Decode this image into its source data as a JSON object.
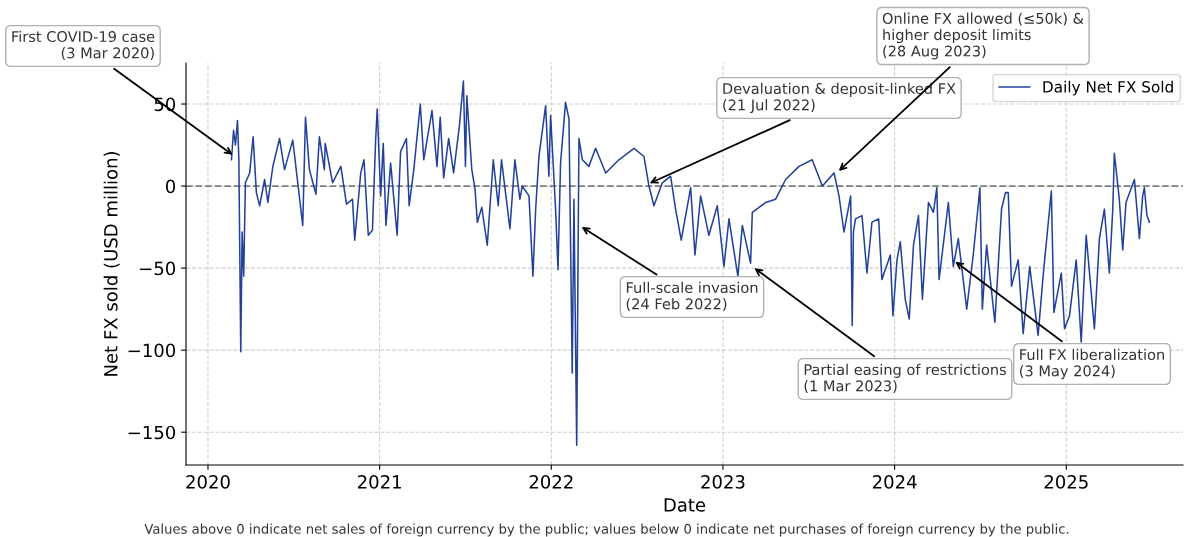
{
  "chart_data": {
    "type": "line",
    "xlabel": "Date",
    "ylabel": "Net FX sold (USD million)",
    "xlim": [
      2019.872,
      2025.68
    ],
    "xticks": [
      2020,
      2021,
      2022,
      2023,
      2024,
      2025
    ],
    "ylim": [
      -170,
      75
    ],
    "yticks": [
      {
        "value": -150,
        "label": "−150"
      },
      {
        "value": -100,
        "label": "−100"
      },
      {
        "value": -50,
        "label": "−50"
      },
      0,
      50
    ],
    "grid": true,
    "legend": "top right",
    "line_style": "solid",
    "marker": "none",
    "ref_lines": [
      {
        "axis": "y",
        "value": 0,
        "color": "#808080",
        "line_style": "dashed"
      }
    ],
    "series": [
      {
        "name": "Daily Net FX Sold",
        "color": "#23409a",
        "x": [
          2020.137,
          2020.149,
          2020.16,
          2020.172,
          2020.18,
          2020.191,
          2020.199,
          2020.208,
          2020.218,
          2020.243,
          2020.263,
          2020.282,
          2020.301,
          2020.33,
          2020.349,
          2020.378,
          2020.417,
          2020.446,
          2020.494,
          2020.523,
          2020.552,
          2020.568,
          2020.591,
          2020.629,
          2020.649,
          2020.678,
          2020.683,
          2020.726,
          2020.774,
          2020.807,
          2020.842,
          2020.855,
          2020.89,
          2020.909,
          2020.934,
          2020.958,
          2020.977,
          2020.986,
          2021.006,
          2021.021,
          2021.037,
          2021.064,
          2021.102,
          2021.122,
          2021.156,
          2021.172,
          2021.199,
          2021.237,
          2021.257,
          2021.305,
          2021.334,
          2021.353,
          2021.373,
          2021.402,
          2021.431,
          2021.465,
          2021.488,
          2021.5,
          2021.508,
          2021.537,
          2021.556,
          2021.569,
          2021.595,
          2021.627,
          2021.662,
          2021.691,
          2021.71,
          2021.759,
          2021.788,
          2021.817,
          2021.831,
          2021.87,
          2021.893,
          2021.909,
          2021.928,
          2021.967,
          2021.986,
          2021.996,
          2022.025,
          2022.039,
          2022.054,
          2022.083,
          2022.103,
          2022.122,
          2022.132,
          2022.148,
          2022.161,
          2022.181,
          2022.219,
          2022.258,
          2022.317,
          2022.394,
          2022.482,
          2022.54,
          2022.569,
          2022.598,
          2022.647,
          2022.695,
          2022.724,
          2022.757,
          2022.812,
          2022.837,
          2022.87,
          2022.918,
          2022.967,
          2023.006,
          2023.035,
          2023.087,
          2023.113,
          2023.161,
          2023.171,
          2023.249,
          2023.307,
          2023.365,
          2023.443,
          2023.52,
          2023.579,
          2023.647,
          2023.676,
          2023.705,
          2023.744,
          2023.753,
          2023.76,
          2023.772,
          2023.81,
          2023.839,
          2023.868,
          2023.907,
          2023.926,
          2023.975,
          2023.99,
          2024.014,
          2024.033,
          2024.062,
          2024.085,
          2024.11,
          2024.139,
          2024.162,
          2024.197,
          2024.226,
          2024.246,
          2024.259,
          2024.313,
          2024.342,
          2024.371,
          2024.42,
          2024.458,
          2024.497,
          2024.511,
          2024.536,
          2024.584,
          2024.623,
          2024.646,
          2024.662,
          2024.681,
          2024.72,
          2024.749,
          2024.787,
          2024.836,
          2024.865,
          2024.913,
          2024.928,
          2024.971,
          2024.99,
          2025.019,
          2025.058,
          2025.087,
          2025.116,
          2025.164,
          2025.193,
          2025.222,
          2025.251,
          2025.271,
          2025.28,
          2025.309,
          2025.329,
          2025.348,
          2025.397,
          2025.426,
          2025.445,
          2025.455,
          2025.47,
          2025.484
        ],
        "values": [
          16,
          34,
          25,
          40,
          16,
          -101,
          -28,
          -55,
          2,
          8,
          30,
          -4,
          -12,
          4,
          -10,
          12,
          29,
          10,
          28,
          2,
          -24,
          42,
          10,
          -5,
          30,
          10,
          26,
          2,
          12,
          -11,
          -8,
          -33,
          8,
          16,
          -30,
          -27,
          29,
          47,
          -6,
          26,
          -24,
          14,
          -30,
          21,
          29,
          -12,
          10,
          50,
          16,
          46,
          12,
          42,
          5,
          29,
          8,
          37,
          64,
          12,
          55,
          10,
          -2,
          -22,
          -13,
          -36,
          16,
          -12,
          16,
          -26,
          16,
          -8,
          0,
          -6,
          -55,
          -14,
          18,
          49,
          6,
          43,
          -14,
          -51,
          14,
          51,
          41,
          -114,
          -8,
          -158,
          29,
          16,
          12,
          23,
          8,
          16,
          23,
          18,
          0,
          -12,
          2,
          6,
          -14,
          -33,
          -1,
          -42,
          -6,
          -30,
          -12,
          -49,
          -20,
          -55,
          -24,
          -47,
          -16,
          -10,
          -8,
          4,
          12,
          16,
          0,
          8,
          -6,
          -28,
          -6,
          -85,
          -28,
          -20,
          -18,
          -53,
          -22,
          -20,
          -57,
          -42,
          -79,
          -45,
          -34,
          -69,
          -81,
          -36,
          -18,
          -69,
          -10,
          -16,
          -1,
          -57,
          -10,
          -49,
          -32,
          -75,
          -42,
          -1,
          -75,
          -36,
          -83,
          -14,
          -4,
          -4,
          -61,
          -45,
          -90,
          -49,
          -91,
          -55,
          -3,
          -77,
          -53,
          -87,
          -79,
          -45,
          -95,
          -30,
          -87,
          -32,
          -14,
          -53,
          -14,
          20,
          -8,
          -39,
          -10,
          4,
          -32,
          -6,
          -1,
          -18,
          -22
        ]
      }
    ],
    "annotations": [
      {
        "text": "First COVID-19 case\n(3 Mar 2020)",
        "x": 2020.157,
        "y": 18
      },
      {
        "text": "Full-scale invasion\n(24 Feb 2022)",
        "x": 2022.163,
        "y": -24
      },
      {
        "text": "Devaluation & deposit-linked FX\n(21 Jul 2022)",
        "x": 2022.558,
        "y": 1
      },
      {
        "text": "Online FX allowed (≤50k) &\nhigher deposit limits\n(28 Aug 2023)",
        "x": 2023.663,
        "y": 8
      },
      {
        "text": "Partial easing of restrictions\n(1 Mar 2023)",
        "x": 2023.17,
        "y": -49
      },
      {
        "text": "Full FX liberalization\n(3 May 2024)",
        "x": 2024.34,
        "y": -45
      },
      "Values above 0 indicate net sales of foreign currency by the public; values below 0 indicate net purchases of foreign currency by the public."
    ]
  }
}
